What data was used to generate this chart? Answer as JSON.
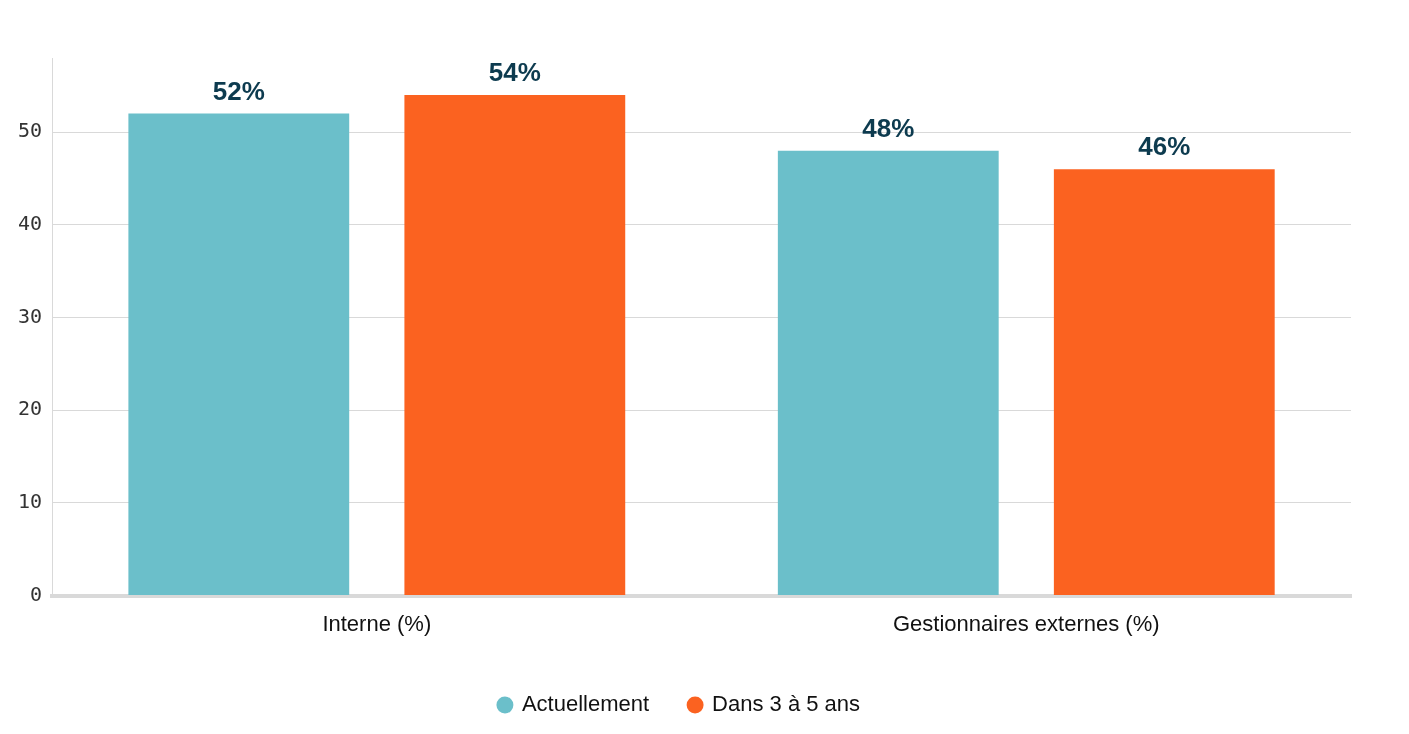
{
  "chart_data": {
    "type": "bar",
    "categories": [
      "Interne (%)",
      "Gestionnaires externes (%)"
    ],
    "series": [
      {
        "name": "Actuellement",
        "color": "#6bbfca",
        "values": [
          52,
          48
        ],
        "value_labels": [
          "52%",
          "48%"
        ]
      },
      {
        "name": "Dans 3 à 5 ans",
        "color": "#fb6220",
        "values": [
          54,
          46
        ],
        "value_labels": [
          "54%",
          "46%"
        ]
      }
    ],
    "ylim": [
      0,
      58
    ],
    "yticks": [
      0,
      10,
      20,
      30,
      40,
      50
    ],
    "grid": "y",
    "legend": "bottom"
  }
}
